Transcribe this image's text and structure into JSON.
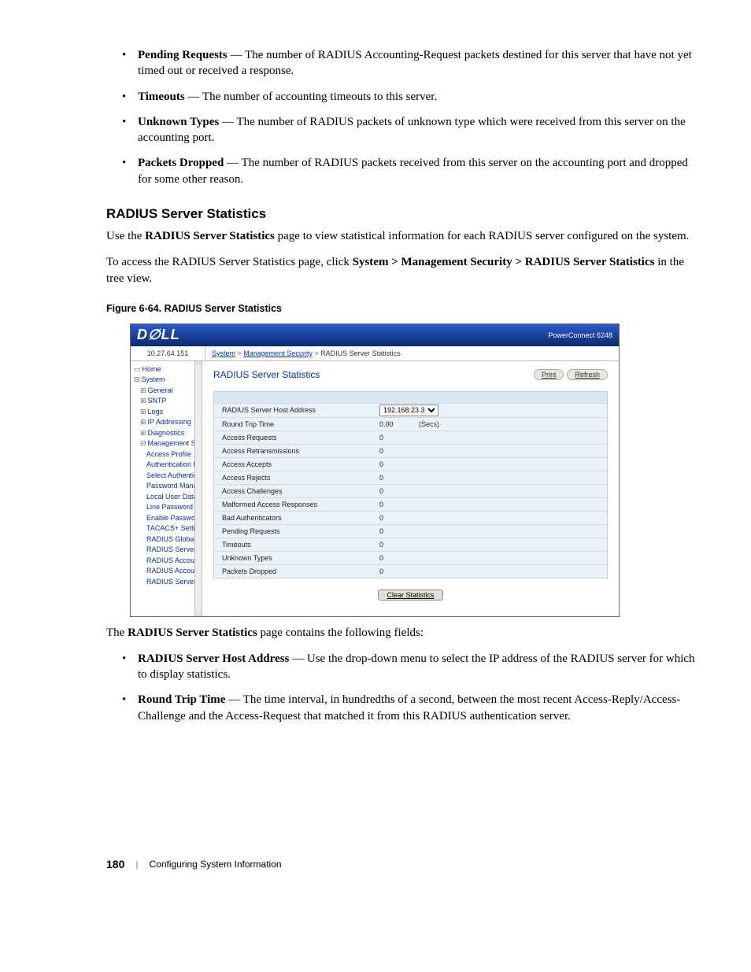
{
  "bullets_top": [
    {
      "term": "Pending Requests",
      "text": " — The number of RADIUS Accounting-Request packets destined for this server that have not yet timed out or received a response."
    },
    {
      "term": "Timeouts",
      "text": " — The number of accounting timeouts to this server."
    },
    {
      "term": "Unknown Types",
      "text": " — The number of RADIUS packets of unknown type which were received from this server on the accounting port."
    },
    {
      "term": "Packets Dropped",
      "text": " — The number of RADIUS packets received from this server on the accounting port and dropped for some other reason."
    }
  ],
  "heading": "RADIUS Server Statistics",
  "para1_pre": "Use the ",
  "para1_bold": "RADIUS Server Statistics",
  "para1_post": " page to view statistical information for each RADIUS server configured on the system.",
  "para2_pre": "To access the RADIUS Server Statistics page, click ",
  "para2_bold": "System > Management Security > RADIUS Server Statistics",
  "para2_post": " in the tree view.",
  "figure_caption": "Figure 6-64.    RADIUS Server Statistics",
  "screenshot": {
    "product": "PowerConnect 6248",
    "ip": "10.27.64.151",
    "crumbs": [
      "System",
      "Management Security",
      "RADIUS Server Statistics"
    ],
    "tree_items": [
      {
        "lvl": 0,
        "exp": "▭",
        "t": "Home"
      },
      {
        "lvl": 0,
        "exp": "⊟",
        "t": "System"
      },
      {
        "lvl": 1,
        "exp": "⊞",
        "t": "General"
      },
      {
        "lvl": 1,
        "exp": "⊞",
        "t": "SNTP"
      },
      {
        "lvl": 1,
        "exp": "⊞",
        "t": "Logs"
      },
      {
        "lvl": 1,
        "exp": "⊞",
        "t": "IP Addressing"
      },
      {
        "lvl": 1,
        "exp": "⊞",
        "t": "Diagnostics"
      },
      {
        "lvl": 1,
        "exp": "⊟",
        "t": "Management Securi"
      },
      {
        "lvl": 2,
        "exp": "",
        "t": "Access Profile"
      },
      {
        "lvl": 2,
        "exp": "",
        "t": "Authentication Pr"
      },
      {
        "lvl": 2,
        "exp": "",
        "t": "Select Authentic"
      },
      {
        "lvl": 2,
        "exp": "",
        "t": "Password Manag"
      },
      {
        "lvl": 2,
        "exp": "",
        "t": "Local User Datab"
      },
      {
        "lvl": 2,
        "exp": "",
        "t": "Line Password"
      },
      {
        "lvl": 2,
        "exp": "",
        "t": "Enable Password"
      },
      {
        "lvl": 2,
        "exp": "",
        "t": "TACACS+ Settin"
      },
      {
        "lvl": 2,
        "exp": "",
        "t": "RADIUS Global C"
      },
      {
        "lvl": 2,
        "exp": "",
        "t": "RADIUS Server C"
      },
      {
        "lvl": 2,
        "exp": "",
        "t": "RADIUS Accoun"
      },
      {
        "lvl": 2,
        "exp": "",
        "t": "RADIUS Accoun"
      },
      {
        "lvl": 2,
        "exp": "",
        "t": "RADIUS Server S"
      }
    ],
    "panel_title": "RADIUS Server Statistics",
    "btn_print": "Print",
    "btn_refresh": "Refresh",
    "host_addr_label": "RADIUS Server Host Address",
    "host_addr_value": "192.168.23.3",
    "rows": [
      {
        "label": "Round Trip Time",
        "value": "0.00",
        "unit": "(Secs)"
      },
      {
        "label": "Access Requests",
        "value": "0",
        "unit": ""
      },
      {
        "label": "Access Retransmissions",
        "value": "0",
        "unit": ""
      },
      {
        "label": "Access Accepts",
        "value": "0",
        "unit": ""
      },
      {
        "label": "Access Rejects",
        "value": "0",
        "unit": ""
      },
      {
        "label": "Access Challenges",
        "value": "0",
        "unit": ""
      },
      {
        "label": "Malformed Access Responses",
        "value": "0",
        "unit": ""
      },
      {
        "label": "Bad Authenticators",
        "value": "0",
        "unit": ""
      },
      {
        "label": "Pending Requests",
        "value": "0",
        "unit": ""
      },
      {
        "label": "Timeouts",
        "value": "0",
        "unit": ""
      },
      {
        "label": "Unknown Types",
        "value": "0",
        "unit": ""
      },
      {
        "label": "Packets Dropped",
        "value": "0",
        "unit": ""
      }
    ],
    "clear_btn": "Clear Statistics"
  },
  "para3_pre": "The ",
  "para3_bold": "RADIUS Server Statistics",
  "para3_post": " page contains the following fields:",
  "bullets_bottom": [
    {
      "term": "RADIUS Server Host Address",
      "text": " — Use the drop-down menu to select the IP address of the RADIUS server for which to display statistics."
    },
    {
      "term": "Round Trip Time",
      "text": " — The time interval, in hundredths of a second, between the most recent Access-Reply/Access-Challenge and the Access-Request that matched it from this RADIUS authentication server."
    }
  ],
  "footer_page": "180",
  "footer_text": "Configuring System Information"
}
